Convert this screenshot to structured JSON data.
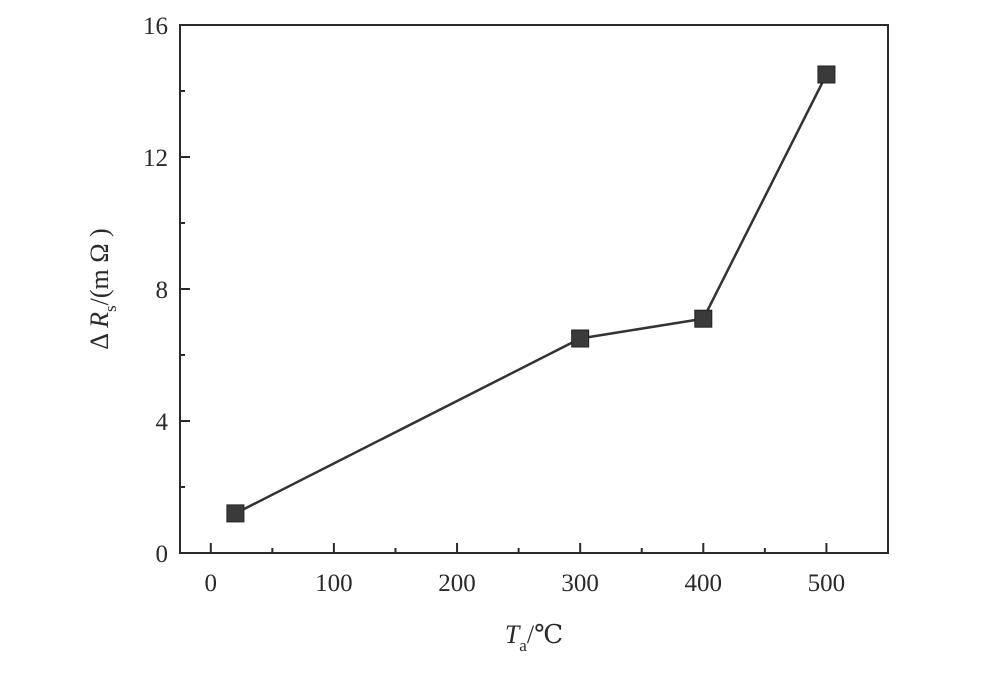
{
  "chart_data": {
    "type": "line",
    "x": [
      20,
      300,
      400,
      500
    ],
    "series": [
      {
        "values": [
          1.2,
          6.5,
          7.1,
          14.5
        ],
        "color": "#333333",
        "marker": "square"
      }
    ],
    "xlim": [
      -25,
      550
    ],
    "ylim": [
      0,
      16
    ],
    "xticks": [
      0,
      100,
      200,
      300,
      400,
      500
    ],
    "yticks": [
      0,
      4,
      8,
      12,
      16
    ],
    "xtick_labels": [
      "0",
      "100",
      "200",
      "300",
      "400",
      "500"
    ],
    "ytick_labels": [
      "0",
      "4",
      "8",
      "12",
      "16"
    ],
    "xlabel": {
      "symbol": "T",
      "subscript": "a",
      "unit": "/℃"
    },
    "ylabel": {
      "prefix": "Δ ",
      "symbol": "R",
      "subscript": "s",
      "unit": "/(m Ω )"
    },
    "grid": false,
    "legend": "none"
  }
}
